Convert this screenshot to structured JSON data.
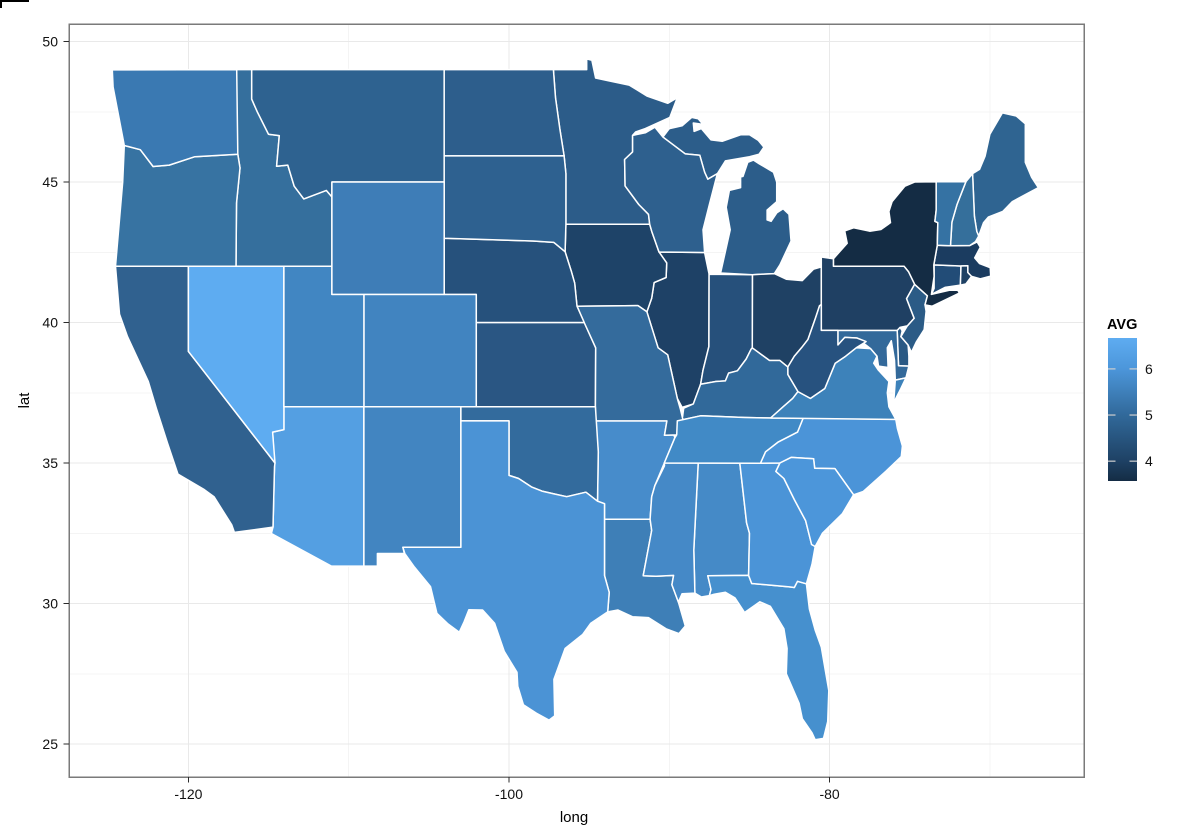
{
  "figure": {
    "background": "#ffffff",
    "panel_border_color": "#7a7a7a",
    "grid_major_color": "#e9e9e9",
    "grid_minor_color": "#f4f4f4",
    "state_border_color": "#ffffff",
    "tick_mark_color": "#2b2b2b"
  },
  "axes": {
    "x": {
      "label": "long",
      "tick_labels": [
        "-120",
        "-100",
        "-80"
      ],
      "tick_values": [
        -120,
        -100,
        -80
      ],
      "minor_tick_values": [
        -110,
        -90,
        -70
      ],
      "range": [
        -127.4,
        -64.1
      ]
    },
    "y": {
      "label": "lat",
      "tick_labels": [
        "25",
        "30",
        "35",
        "40",
        "45",
        "50"
      ],
      "tick_values": [
        25,
        30,
        35,
        40,
        45,
        50
      ],
      "minor_tick_values": [
        27.5,
        32.5,
        37.5,
        42.5,
        47.5
      ],
      "range": [
        23.8,
        50.6
      ]
    }
  },
  "legend": {
    "title": "AVG",
    "ticks": [
      {
        "label": "6",
        "value": 6
      },
      {
        "label": "5",
        "value": 5
      },
      {
        "label": "4",
        "value": 4
      }
    ],
    "domain": [
      3.57,
      6.67
    ],
    "gradient_stops": [
      {
        "value": 3.57,
        "color": "#142c44"
      },
      {
        "value": 4.0,
        "color": "#1e4164"
      },
      {
        "value": 5.0,
        "color": "#31699a"
      },
      {
        "value": 6.0,
        "color": "#4c96da"
      },
      {
        "value": 6.67,
        "color": "#5eacf1"
      }
    ]
  },
  "chart_data": {
    "type": "choropleth",
    "value_name": "AVG",
    "geography": "US lower 48 states",
    "xlabel": "long",
    "ylabel": "lat",
    "xlim": [
      -127.4,
      -64.1
    ],
    "ylim": [
      23.8,
      50.6
    ],
    "legend_position": "right",
    "grid": "major and minor, light grey",
    "states": [
      {
        "name": "alabama",
        "value": 5.9,
        "fill": "#458ac7"
      },
      {
        "name": "arizona",
        "value": 6.3,
        "fill": "#549fe2"
      },
      {
        "name": "arkansas",
        "value": 5.9,
        "fill": "#478ccb"
      },
      {
        "name": "california",
        "value": 4.7,
        "fill": "#30618f"
      },
      {
        "name": "colorado",
        "value": 5.7,
        "fill": "#4184c0"
      },
      {
        "name": "connecticut",
        "value": 4.2,
        "fill": "#224c77"
      },
      {
        "name": "delaware",
        "value": 4.5,
        "fill": "#2a5984"
      },
      {
        "name": "florida",
        "value": 6.0,
        "fill": "#4690ce"
      },
      {
        "name": "georgia",
        "value": 6.1,
        "fill": "#4b94d7"
      },
      {
        "name": "idaho",
        "value": 5.1,
        "fill": "#356f9d"
      },
      {
        "name": "illinois",
        "value": 3.9,
        "fill": "#1e4166"
      },
      {
        "name": "indiana",
        "value": 4.3,
        "fill": "#26507b"
      },
      {
        "name": "iowa",
        "value": 3.9,
        "fill": "#1e4368"
      },
      {
        "name": "kansas",
        "value": 4.4,
        "fill": "#2a5683"
      },
      {
        "name": "kentucky",
        "value": 4.9,
        "fill": "#31699a"
      },
      {
        "name": "louisiana",
        "value": 5.5,
        "fill": "#3e7fb7"
      },
      {
        "name": "maine",
        "value": 4.8,
        "fill": "#2f6491"
      },
      {
        "name": "maryland",
        "value": 4.9,
        "fill": "#33699a"
      },
      {
        "name": "massachusetts",
        "value": 3.8,
        "fill": "#1b3c60"
      },
      {
        "name": "michigan",
        "value": 4.6,
        "fill": "#2c5d8a"
      },
      {
        "name": "minnesota",
        "value": 4.5,
        "fill": "#2c5c89"
      },
      {
        "name": "mississippi",
        "value": 5.9,
        "fill": "#4589c7"
      },
      {
        "name": "missouri",
        "value": 5.0,
        "fill": "#346b9c"
      },
      {
        "name": "montana",
        "value": 4.7,
        "fill": "#2e6290"
      },
      {
        "name": "nebraska",
        "value": 4.3,
        "fill": "#26517c"
      },
      {
        "name": "nevada",
        "value": 6.7,
        "fill": "#5eacf1"
      },
      {
        "name": "new hampshire",
        "value": 5.1,
        "fill": "#356f9b"
      },
      {
        "name": "new jersey",
        "value": 4.5,
        "fill": "#2b5b86"
      },
      {
        "name": "new mexico",
        "value": 5.7,
        "fill": "#4285c1"
      },
      {
        "name": "new york",
        "value": 3.6,
        "fill": "#142c44"
      },
      {
        "name": "north carolina",
        "value": 6.1,
        "fill": "#4b94d8"
      },
      {
        "name": "north dakota",
        "value": 4.6,
        "fill": "#2d5e8c"
      },
      {
        "name": "ohio",
        "value": 3.9,
        "fill": "#1f4164"
      },
      {
        "name": "oklahoma",
        "value": 5.0,
        "fill": "#336b9d"
      },
      {
        "name": "oregon",
        "value": 5.2,
        "fill": "#3773a2"
      },
      {
        "name": "pennsylvania",
        "value": 3.9,
        "fill": "#1f4063"
      },
      {
        "name": "rhode island",
        "value": 3.9,
        "fill": "#1e4164"
      },
      {
        "name": "south carolina",
        "value": 6.1,
        "fill": "#4c96da"
      },
      {
        "name": "south dakota",
        "value": 4.7,
        "fill": "#2e6190"
      },
      {
        "name": "tennessee",
        "value": 5.8,
        "fill": "#418ac6"
      },
      {
        "name": "texas",
        "value": 6.1,
        "fill": "#4b93d5"
      },
      {
        "name": "utah",
        "value": 5.7,
        "fill": "#4186c2"
      },
      {
        "name": "vermont",
        "value": 5.2,
        "fill": "#3572a3"
      },
      {
        "name": "virginia",
        "value": 5.6,
        "fill": "#3d82ba"
      },
      {
        "name": "washington",
        "value": 5.4,
        "fill": "#3a79b2"
      },
      {
        "name": "west virginia",
        "value": 4.3,
        "fill": "#27527f"
      },
      {
        "name": "wisconsin",
        "value": 4.7,
        "fill": "#2e608e"
      },
      {
        "name": "wyoming",
        "value": 5.5,
        "fill": "#3e7db7"
      }
    ]
  }
}
